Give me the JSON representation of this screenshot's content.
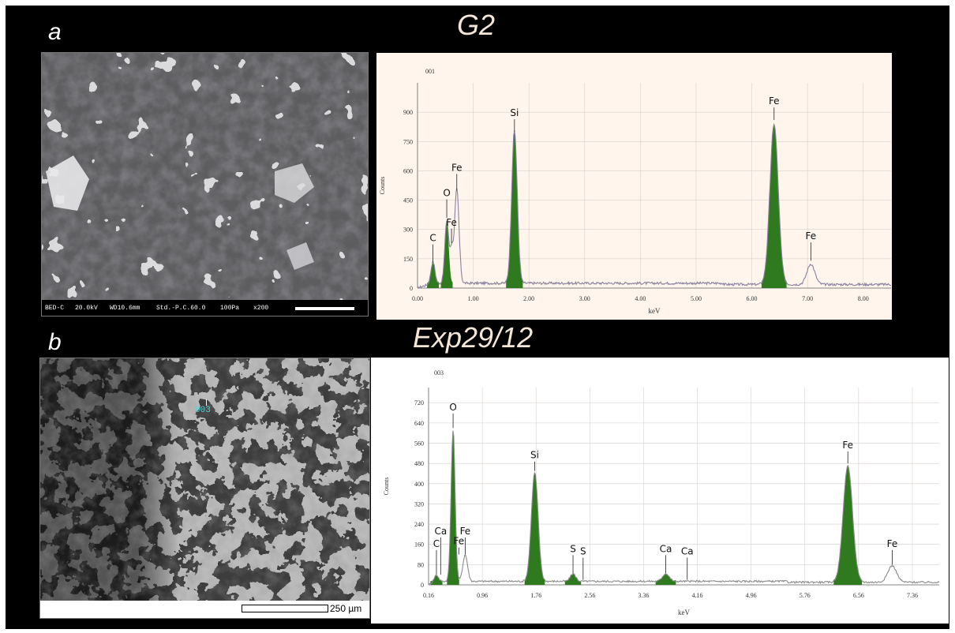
{
  "panels": [
    {
      "letter": "a",
      "title": "G2",
      "sem_image": {
        "info_bar": [
          "BED-C",
          "20.0kV",
          "WD10.6mm",
          "Std.-P.C.60.0",
          "100Pa",
          "x200"
        ]
      }
    },
    {
      "letter": "b",
      "title": "Exp29/12",
      "sem_image": {
        "spot_label": "003",
        "scale_label": "250 µm"
      }
    }
  ],
  "chart_data": [
    {
      "type": "line",
      "spectrum_id": "001",
      "title": "",
      "xlabel": "keV",
      "ylabel": "Counts",
      "xlim": [
        0,
        8.5
      ],
      "ylim": [
        0,
        1050
      ],
      "x_ticks": [
        0,
        1,
        2,
        3,
        4,
        5,
        6,
        7,
        8
      ],
      "x_tick_labels": [
        "0.00",
        "1.00",
        "2.00",
        "3.00",
        "4.00",
        "5.00",
        "6.00",
        "7.00",
        "8.00"
      ],
      "y_ticks": [
        0,
        150,
        300,
        450,
        600,
        750,
        900
      ],
      "y_tick_labels": [
        "0",
        "150",
        "300",
        "450",
        "600",
        "750",
        "900"
      ],
      "background": "#fff5ec",
      "fill_color": "#2f7a1e",
      "line_color": "#8a80a0",
      "baseline": 25,
      "peaks": [
        {
          "x": 0.277,
          "height": 110,
          "width": 0.035,
          "filled": true
        },
        {
          "x": 0.525,
          "height": 320,
          "width": 0.035,
          "filled": true
        },
        {
          "x": 0.61,
          "height": 160,
          "width": 0.028,
          "filled": false
        },
        {
          "x": 0.705,
          "height": 480,
          "width": 0.04,
          "filled": false
        },
        {
          "x": 1.74,
          "height": 780,
          "width": 0.05,
          "filled": true
        },
        {
          "x": 6.4,
          "height": 820,
          "width": 0.075,
          "filled": true
        },
        {
          "x": 7.06,
          "height": 105,
          "width": 0.07,
          "filled": false
        }
      ],
      "labels": [
        {
          "text": "C",
          "x": 0.277,
          "y": 240,
          "tick_to": 130
        },
        {
          "text": "O",
          "x": 0.525,
          "y": 470,
          "tick_to": 360
        },
        {
          "text": "Fe",
          "x": 0.61,
          "y": 320,
          "tick_to": 230
        },
        {
          "text": "Fe",
          "x": 0.705,
          "y": 600,
          "tick_to": 500
        },
        {
          "text": "Si",
          "x": 1.74,
          "y": 880,
          "tick_to": 800
        },
        {
          "text": "Fe",
          "x": 6.4,
          "y": 940,
          "tick_to": 860
        },
        {
          "text": "Fe",
          "x": 7.06,
          "y": 250,
          "tick_to": 140
        }
      ]
    },
    {
      "type": "line",
      "spectrum_id": "003",
      "title": "",
      "xlabel": "keV",
      "ylabel": "Counts",
      "xlim": [
        0.16,
        7.76
      ],
      "ylim": [
        0,
        780
      ],
      "x_ticks": [
        0.16,
        0.96,
        1.76,
        2.56,
        3.36,
        4.16,
        4.96,
        5.76,
        6.56,
        7.36
      ],
      "x_tick_labels": [
        "0.16",
        "0.96",
        "1.76",
        "2.56",
        "3.36",
        "4.16",
        "4.96",
        "5.76",
        "6.56",
        "7.36"
      ],
      "y_ticks": [
        0,
        80,
        160,
        240,
        320,
        400,
        480,
        560,
        640,
        720
      ],
      "y_tick_labels": [
        "0",
        "80",
        "160",
        "240",
        "320",
        "400",
        "480",
        "560",
        "640",
        "720"
      ],
      "background": "#ffffff",
      "fill_color": "#2f7a1e",
      "line_color": "#8a8a8a",
      "baseline": 14,
      "peaks": [
        {
          "x": 0.277,
          "height": 25,
          "width": 0.03,
          "filled": true
        },
        {
          "x": 0.525,
          "height": 600,
          "width": 0.03,
          "filled": true
        },
        {
          "x": 0.705,
          "height": 105,
          "width": 0.035,
          "filled": false
        },
        {
          "x": 1.74,
          "height": 430,
          "width": 0.05,
          "filled": true
        },
        {
          "x": 2.31,
          "height": 30,
          "width": 0.04,
          "filled": true
        },
        {
          "x": 3.69,
          "height": 30,
          "width": 0.05,
          "filled": true
        },
        {
          "x": 6.4,
          "height": 460,
          "width": 0.07,
          "filled": true
        },
        {
          "x": 7.06,
          "height": 65,
          "width": 0.065,
          "filled": false
        }
      ],
      "labels": [
        {
          "text": "Ca",
          "x": 0.34,
          "y": 200,
          "tick_to": 40
        },
        {
          "text": "C",
          "x": 0.277,
          "y": 150,
          "tick_to": 40
        },
        {
          "text": "O",
          "x": 0.525,
          "y": 690,
          "tick_to": 620
        },
        {
          "text": "Fe",
          "x": 0.705,
          "y": 200,
          "tick_to": 120
        },
        {
          "text": "Fe",
          "x": 0.61,
          "y": 160,
          "tick_to": 120
        },
        {
          "text": "Si",
          "x": 1.74,
          "y": 500,
          "tick_to": 450
        },
        {
          "text": "S",
          "x": 2.31,
          "y": 130,
          "tick_to": 45
        },
        {
          "text": "S",
          "x": 2.46,
          "y": 120,
          "tick_to": 20
        },
        {
          "text": "Ca",
          "x": 3.69,
          "y": 130,
          "tick_to": 45
        },
        {
          "text": "Ca",
          "x": 4.01,
          "y": 120,
          "tick_to": 20
        },
        {
          "text": "Fe",
          "x": 6.4,
          "y": 540,
          "tick_to": 480
        },
        {
          "text": "Fe",
          "x": 7.06,
          "y": 150,
          "tick_to": 80
        }
      ]
    }
  ]
}
